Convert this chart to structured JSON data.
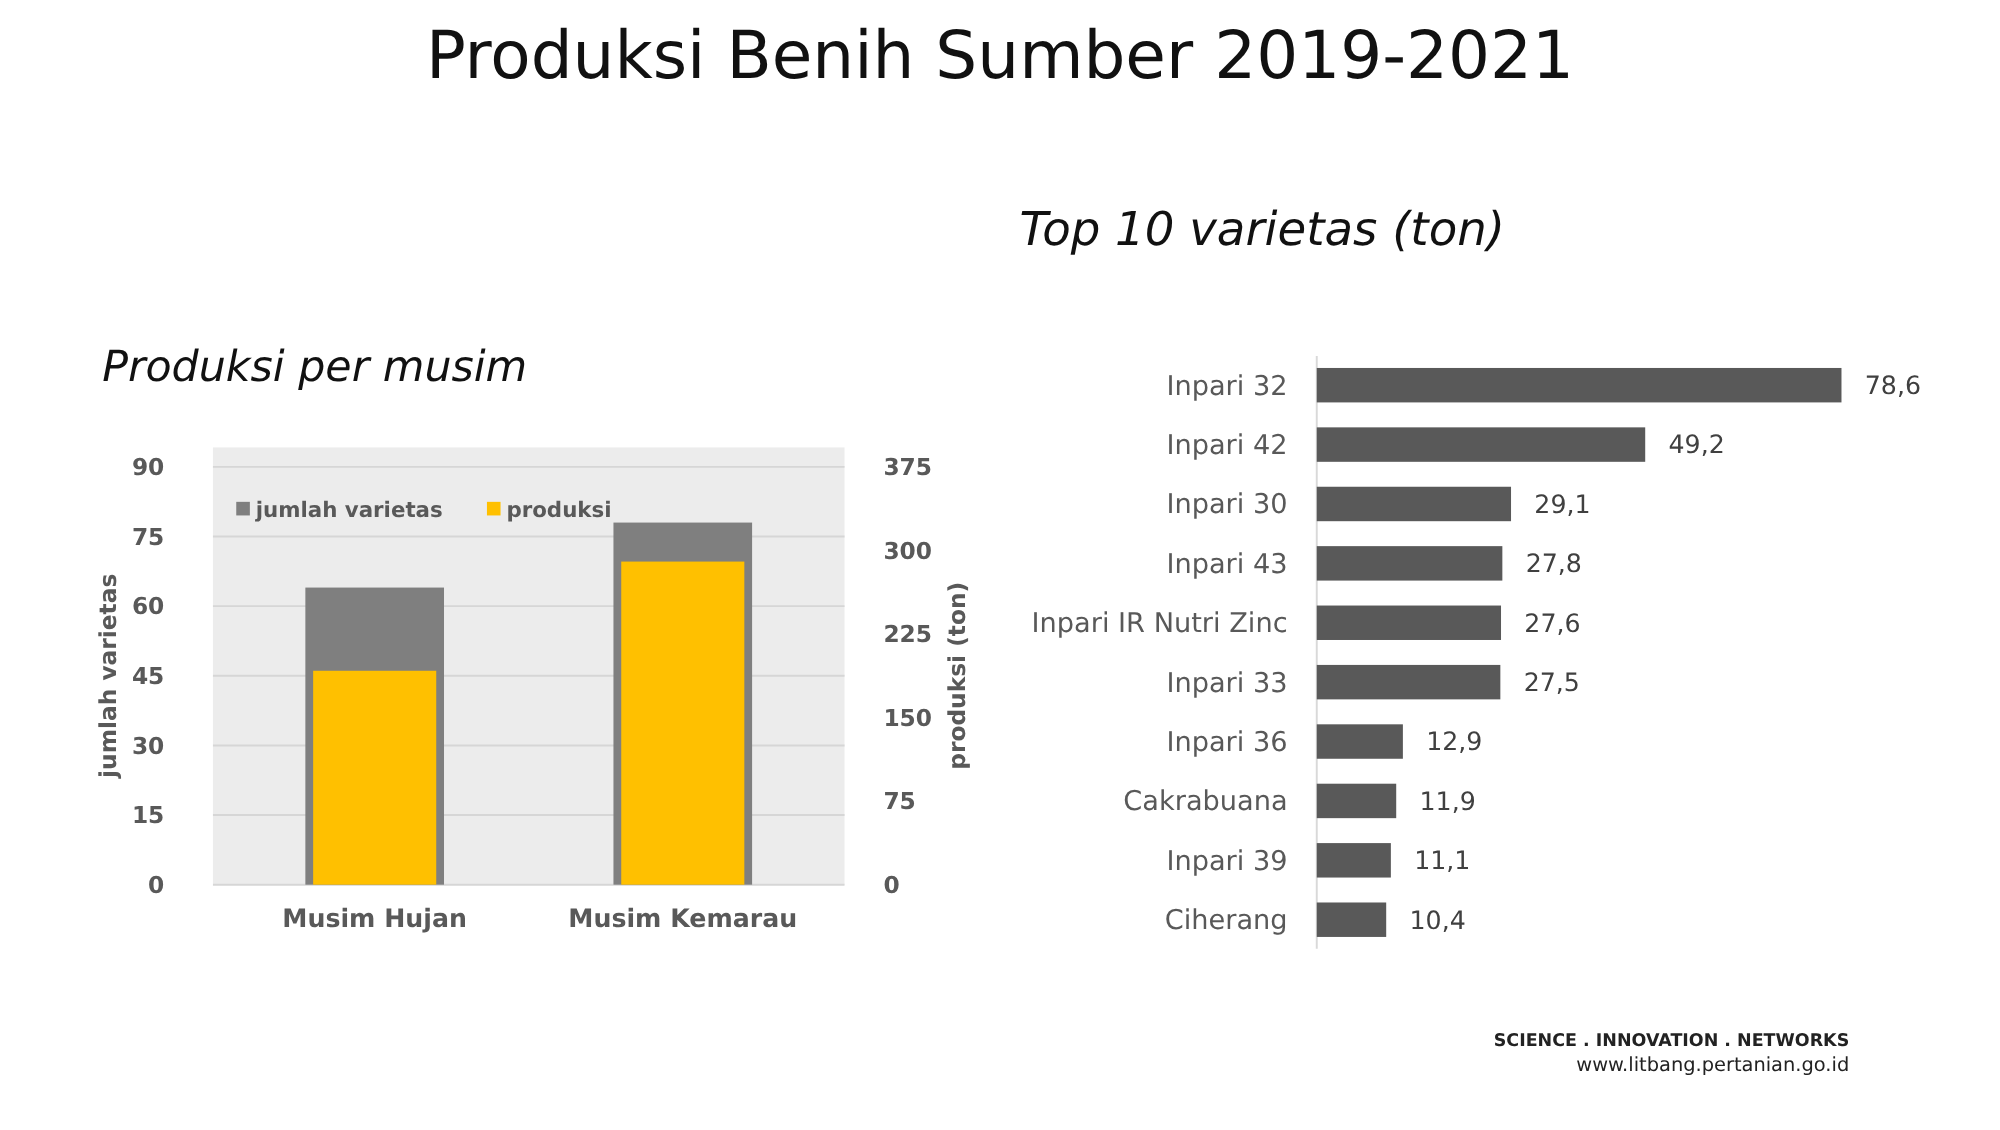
{
  "chart_data": [
    {
      "type": "bar",
      "title": "Produksi Benih Sumber 2019-2021",
      "subtitle": "Produksi per musim",
      "categories": [
        "Musim Hujan",
        "Musim Kemarau"
      ],
      "ylabel": "jumlah varietas",
      "y2label": "produksi (ton)",
      "ylim": [
        0,
        90
      ],
      "yticks": [
        0,
        15,
        30,
        45,
        60,
        75,
        90
      ],
      "y2lim": [
        0,
        375
      ],
      "y2ticks": [
        0,
        75,
        150,
        225,
        300,
        375
      ],
      "grid": "y",
      "legend": "top left",
      "series": [
        {
          "name": "jumlah varietas",
          "color": "#7f7f7f",
          "values": [
            64,
            78
          ]
        },
        {
          "name": "produksi",
          "color": "#ffc000",
          "values": [
            192,
            290
          ],
          "axis": "y2"
        }
      ]
    },
    {
      "type": "bar",
      "orientation": "horizontal",
      "title": "Top 10 varietas (ton)",
      "categories": [
        "Inpari 32",
        "Inpari 42",
        "Inpari 30",
        "Inpari 43",
        "Inpari IR Nutri Zinc",
        "Inpari 33",
        "Inpari 36",
        "Cakrabuana",
        "Inpari 39",
        "Ciherang"
      ],
      "series": [
        {
          "color": "#595959",
          "values": [
            78.6,
            49.2,
            29.1,
            27.8,
            27.6,
            27.5,
            12.9,
            11.9,
            11.1,
            10.4
          ],
          "value_labels": [
            "78,6",
            "49,2",
            "29,1",
            "27,8",
            "27,6",
            "27,5",
            "12,9",
            "11,9",
            "11,1",
            "10,4"
          ]
        }
      ],
      "data_labels": true,
      "annotations": [
        "SCIENCE . INNOVATION . NETWORKS",
        "www.litbang.pertanian.go.id"
      ]
    }
  ]
}
